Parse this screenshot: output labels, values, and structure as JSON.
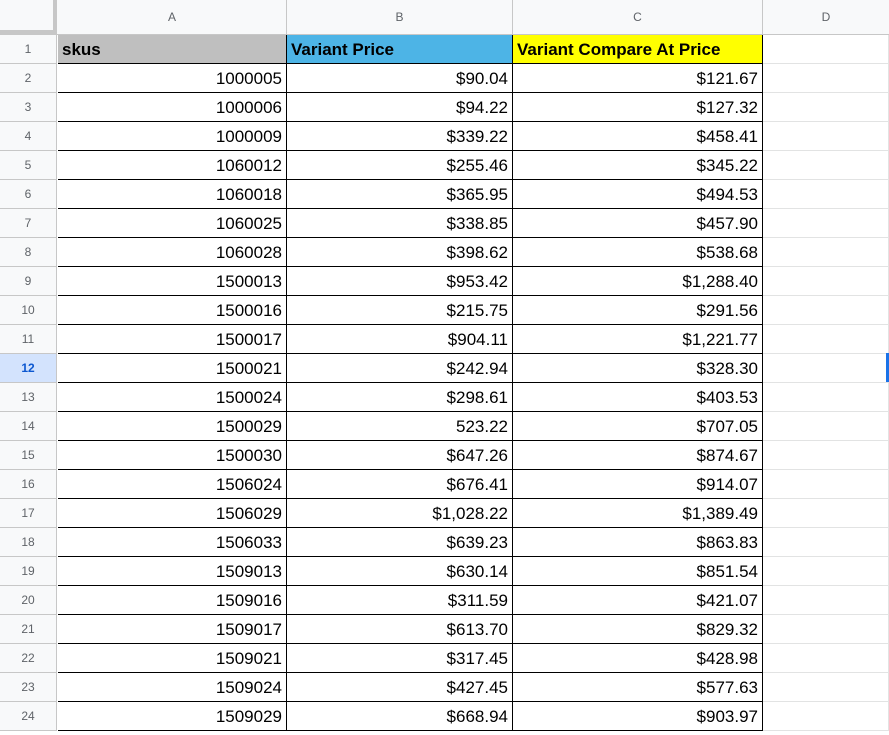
{
  "columns": [
    "A",
    "B",
    "C",
    "D"
  ],
  "header_row": {
    "row_number": "1",
    "cells": [
      {
        "text": "skus",
        "bg": "#bfbfbf"
      },
      {
        "text": "Variant Price",
        "bg": "#4db4e6"
      },
      {
        "text": "Variant Compare At Price",
        "bg": "#ffff00"
      }
    ]
  },
  "selected_row": "12",
  "rows": [
    {
      "n": "2",
      "sku": "1000005",
      "price": "$90.04",
      "compare": "$121.67"
    },
    {
      "n": "3",
      "sku": "1000006",
      "price": "$94.22",
      "compare": "$127.32"
    },
    {
      "n": "4",
      "sku": "1000009",
      "price": "$339.22",
      "compare": "$458.41"
    },
    {
      "n": "5",
      "sku": "1060012",
      "price": "$255.46",
      "compare": "$345.22"
    },
    {
      "n": "6",
      "sku": "1060018",
      "price": "$365.95",
      "compare": "$494.53"
    },
    {
      "n": "7",
      "sku": "1060025",
      "price": "$338.85",
      "compare": "$457.90"
    },
    {
      "n": "8",
      "sku": "1060028",
      "price": "$398.62",
      "compare": "$538.68"
    },
    {
      "n": "9",
      "sku": "1500013",
      "price": "$953.42",
      "compare": "$1,288.40"
    },
    {
      "n": "10",
      "sku": "1500016",
      "price": "$215.75",
      "compare": "$291.56"
    },
    {
      "n": "11",
      "sku": "1500017",
      "price": "$904.11",
      "compare": "$1,221.77"
    },
    {
      "n": "12",
      "sku": "1500021",
      "price": "$242.94",
      "compare": "$328.30"
    },
    {
      "n": "13",
      "sku": "1500024",
      "price": "$298.61",
      "compare": "$403.53"
    },
    {
      "n": "14",
      "sku": "1500029",
      "price": "523.22",
      "compare": "$707.05"
    },
    {
      "n": "15",
      "sku": "1500030",
      "price": "$647.26",
      "compare": "$874.67"
    },
    {
      "n": "16",
      "sku": "1506024",
      "price": "$676.41",
      "compare": "$914.07"
    },
    {
      "n": "17",
      "sku": "1506029",
      "price": "$1,028.22",
      "compare": "$1,389.49"
    },
    {
      "n": "18",
      "sku": "1506033",
      "price": "$639.23",
      "compare": "$863.83"
    },
    {
      "n": "19",
      "sku": "1509013",
      "price": "$630.14",
      "compare": "$851.54"
    },
    {
      "n": "20",
      "sku": "1509016",
      "price": "$311.59",
      "compare": "$421.07"
    },
    {
      "n": "21",
      "sku": "1509017",
      "price": "$613.70",
      "compare": "$829.32"
    },
    {
      "n": "22",
      "sku": "1509021",
      "price": "$317.45",
      "compare": "$428.98"
    },
    {
      "n": "23",
      "sku": "1509024",
      "price": "$427.45",
      "compare": "$577.63"
    },
    {
      "n": "24",
      "sku": "1509029",
      "price": "$668.94",
      "compare": "$903.97"
    }
  ]
}
